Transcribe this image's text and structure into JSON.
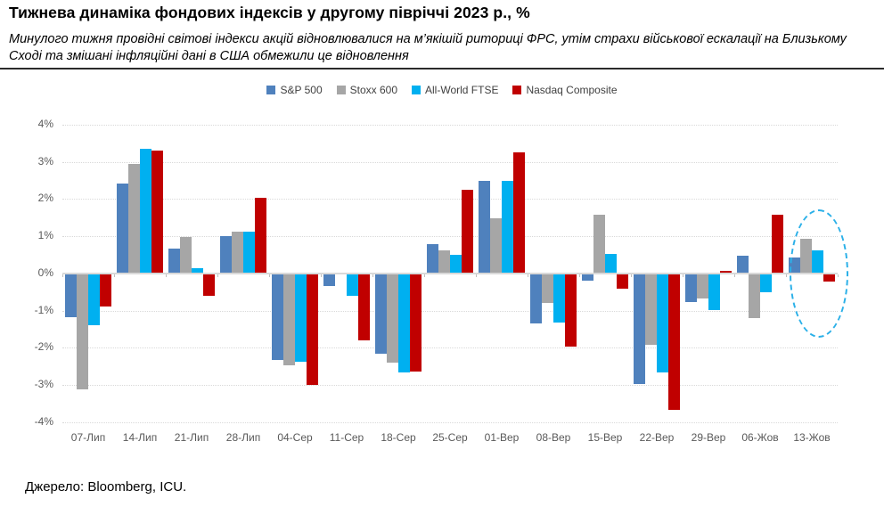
{
  "header": {
    "title": "Тижнева динаміка фондових індексів у другому півріччі 2023 р., %",
    "subtitle": "Минулого тижня провідні світові індекси акцій відновлювалися на м’якішій риториці ФРС, утім страхи військової ескалації на Близькому Сході та змішані інфляційні дані в США обмежили це відновлення"
  },
  "footer": {
    "source": "Джерело: Bloomberg, ICU."
  },
  "chart_data": {
    "type": "bar",
    "title": "Тижнева динаміка фондових індексів у другому півріччі 2023 р., %",
    "xlabel": "",
    "ylabel": "",
    "ylim": [
      -4,
      4
    ],
    "y_tick_step": 1,
    "y_tick_suffix": "%",
    "grid": "dotted horizontal",
    "legend_position": "top center",
    "categories": [
      "07-Лип",
      "14-Лип",
      "21-Лип",
      "28-Лип",
      "04-Сер",
      "11-Сер",
      "18-Сер",
      "25-Сер",
      "01-Вер",
      "08-Вер",
      "15-Вер",
      "22-Вер",
      "29-Вер",
      "06-Жов",
      "13-Жов"
    ],
    "series": [
      {
        "name": "S&P 500",
        "color": "#4F81BD",
        "values": [
          -1.16,
          2.41,
          0.66,
          1.01,
          -2.3,
          -0.31,
          -2.14,
          0.79,
          2.49,
          -1.32,
          -0.18,
          -2.95,
          -0.74,
          0.47,
          0.42
        ]
      },
      {
        "name": "Stoxx 600",
        "color": "#A6A6A6",
        "values": [
          -3.1,
          2.94,
          0.98,
          1.12,
          -2.46,
          0.0,
          -2.38,
          0.62,
          1.48,
          -0.78,
          1.58,
          -1.9,
          -0.66,
          -1.18,
          0.93
        ]
      },
      {
        "name": "All-World FTSE",
        "color": "#00B0F0",
        "values": [
          -1.36,
          3.36,
          0.14,
          1.12,
          -2.36,
          -0.58,
          -2.65,
          0.5,
          2.49,
          -1.29,
          0.52,
          -2.64,
          -0.96,
          -0.49,
          0.63
        ]
      },
      {
        "name": "Nasdaq Composite",
        "color": "#C00000",
        "values": [
          -0.88,
          3.3,
          -0.59,
          2.04,
          -2.98,
          -1.79,
          -2.62,
          2.24,
          3.25,
          -1.94,
          -0.38,
          -3.65,
          0.06,
          1.58,
          -0.19
        ]
      }
    ],
    "annotation": {
      "shape": "dashed-ellipse",
      "highlighted_category": "13-Жов",
      "color": "#2bb0e8"
    }
  },
  "layout_colors": {
    "axis_text": "#595959",
    "legend_text": "#404040",
    "gridline": "#d9d9d9",
    "separator": "#2b2b2b"
  }
}
